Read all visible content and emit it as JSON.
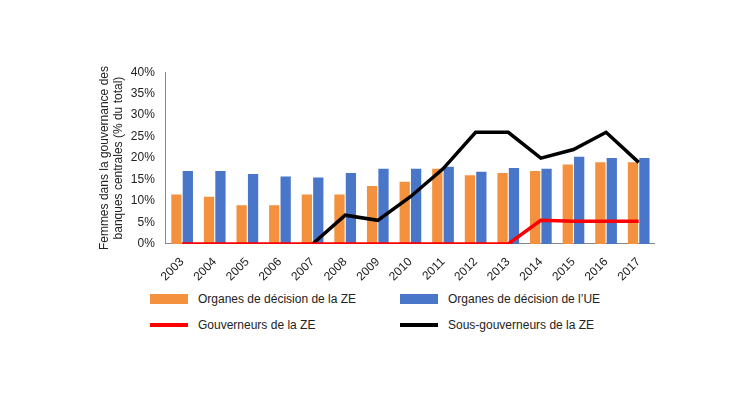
{
  "chart_data": {
    "type": "bar",
    "y_label": [
      "Femmes dans la gouvernance des",
      "banques centrales (% du total)"
    ],
    "categories": [
      "2003",
      "2004",
      "2005",
      "2006",
      "2007",
      "2008",
      "2009",
      "2010",
      "2011",
      "2012",
      "2013",
      "2014",
      "2015",
      "2016",
      "2017"
    ],
    "series": [
      {
        "name": "Organes de décision de la ZE",
        "type": "bar",
        "color": "#f4913f",
        "values": [
          11.5,
          11,
          9,
          9,
          11.5,
          11.5,
          13.5,
          14.5,
          17.5,
          16,
          16.5,
          17,
          18.5,
          19,
          19
        ]
      },
      {
        "name": "Organes de décision de l’UE",
        "type": "bar",
        "color": "#4a76c9",
        "values": [
          17,
          17,
          16.3,
          15.7,
          15.5,
          16.5,
          17.5,
          17.5,
          18,
          16.8,
          17.7,
          17.5,
          20.3,
          20,
          20
        ]
      },
      {
        "name": "Gouverneurs de la ZE",
        "type": "line",
        "color": "#ff0000",
        "values": [
          0,
          0,
          0,
          0,
          0,
          0,
          0,
          0,
          0,
          0,
          0,
          5.5,
          5.3,
          5.3,
          5.3
        ]
      },
      {
        "name": "Sous-gouverneurs de la ZE",
        "type": "line",
        "color": "#000000",
        "values": [
          null,
          null,
          null,
          null,
          0,
          6.7,
          5.5,
          11,
          17.5,
          26,
          26,
          20,
          22,
          26,
          19
        ]
      }
    ],
    "ylim": [
      0,
      40
    ],
    "yticks": [
      {
        "value": 0,
        "label": "0%"
      },
      {
        "value": 5,
        "label": "5%"
      },
      {
        "value": 10,
        "label": "10%"
      },
      {
        "value": 15,
        "label": "15%"
      },
      {
        "value": 20,
        "label": "20%"
      },
      {
        "value": 25,
        "label": "25%"
      },
      {
        "value": 30,
        "label": "30%"
      },
      {
        "value": 35,
        "label": "35%"
      },
      {
        "value": 40,
        "label": "40%"
      }
    ],
    "grid": false,
    "legend": "bottom"
  }
}
